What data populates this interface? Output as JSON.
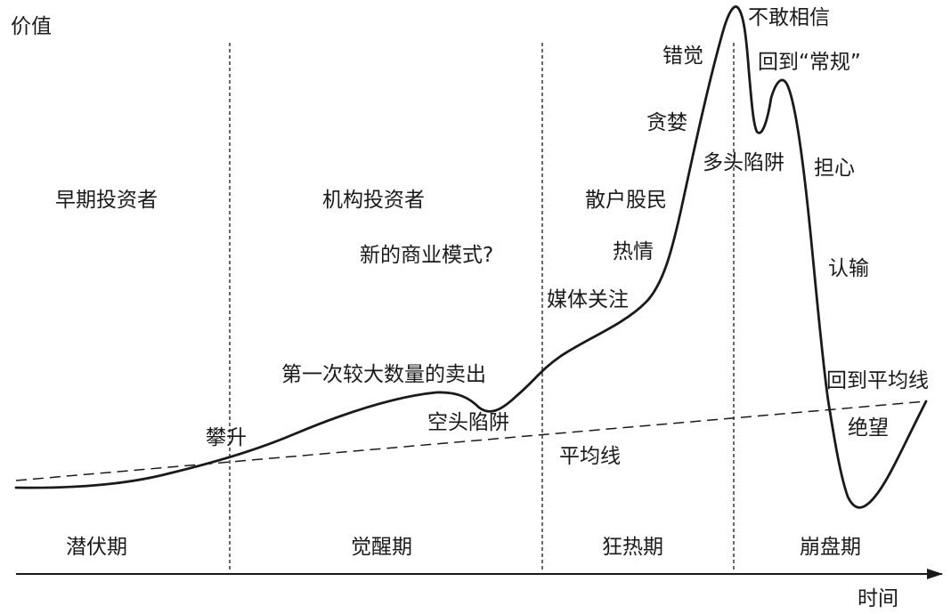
{
  "axes": {
    "y_label": "价值",
    "x_label": "时间"
  },
  "phases": [
    {
      "name": "潜伏期",
      "investor": "早期投资者"
    },
    {
      "name": "觉醒期",
      "investor": "机构投资者"
    },
    {
      "name": "狂热期",
      "investor": "散户股民"
    },
    {
      "name": "崩盘期",
      "investor": ""
    }
  ],
  "lines": {
    "mean_line_label": "平均线"
  },
  "annotations": {
    "climb": "攀升",
    "first_big_selloff": "第一次较大数量的卖出",
    "new_business_model": "新的商业模式?",
    "bear_trap": "空头陷阱",
    "media_attention": "媒体关注",
    "enthusiasm": "热情",
    "greed": "贪婪",
    "delusion": "错觉",
    "disbelief": "不敢相信",
    "back_to_normal": "回到“常规”",
    "bull_trap": "多头陷阱",
    "worry": "担心",
    "capitulation": "认输",
    "return_to_mean": "回到平均线",
    "despair": "绝望"
  },
  "colors": {
    "line": "#1a1a1a",
    "background": "#ffffff"
  }
}
